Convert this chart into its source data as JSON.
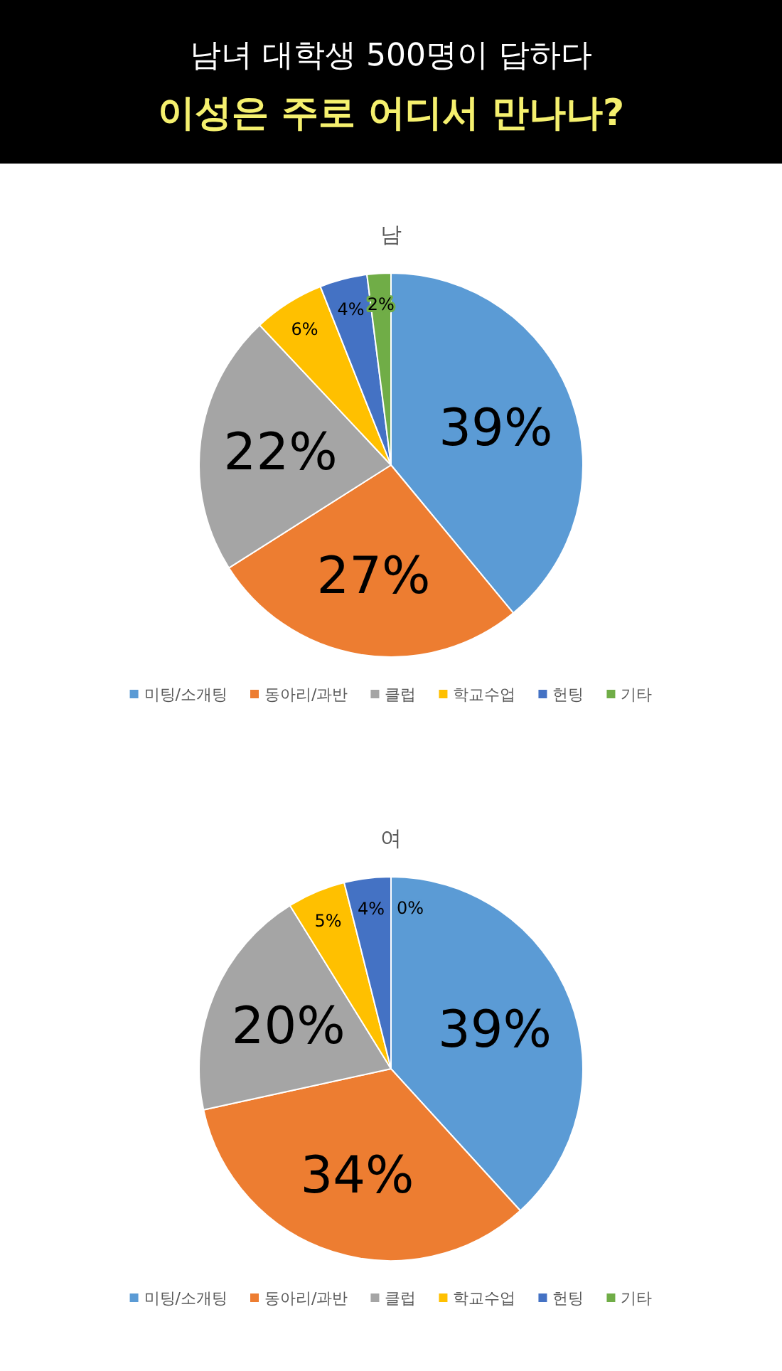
{
  "chart_data": [
    {
      "type": "pie",
      "title": "남",
      "annotations": [
        "남녀 대학생 500명이 답하다",
        "이성은 주로 어디서 만나나?"
      ],
      "categories": [
        "미팅/소개팅",
        "동아리/과반",
        "클럽",
        "학교수업",
        "헌팅",
        "기타"
      ],
      "values": [
        39,
        27,
        22,
        6,
        4,
        2
      ],
      "value_labels": [
        "39%",
        "27%",
        "22%",
        "6%",
        "4%",
        "2%"
      ],
      "colors": [
        "#5b9bd5",
        "#ed7d31",
        "#a5a5a5",
        "#ffc000",
        "#4472c4",
        "#70ad47"
      ],
      "legend": "bottom"
    },
    {
      "type": "pie",
      "title": "여",
      "categories": [
        "미팅/소개팅",
        "동아리/과반",
        "클럽",
        "학교수업",
        "헌팅",
        "기타"
      ],
      "values": [
        39,
        34,
        20,
        5,
        4,
        0
      ],
      "value_labels": [
        "39%",
        "34%",
        "20%",
        "5%",
        "4%",
        "0%"
      ],
      "colors": [
        "#5b9bd5",
        "#ed7d31",
        "#a5a5a5",
        "#ffc000",
        "#4472c4",
        "#70ad47"
      ],
      "legend": "bottom"
    }
  ]
}
